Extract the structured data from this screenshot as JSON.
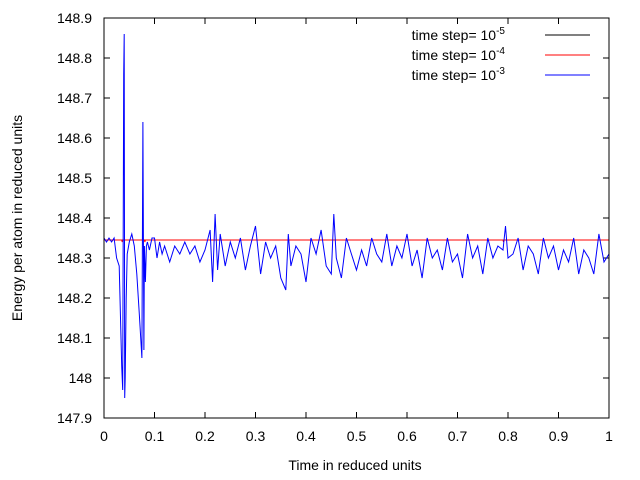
{
  "chart_data": {
    "type": "line",
    "title": "",
    "xlabel": "Time in reduced units",
    "ylabel": "Energy per atom in reduced units",
    "xlim": [
      0,
      1
    ],
    "ylim": [
      147.9,
      148.9
    ],
    "xticks": [
      "0",
      "0.1",
      "0.2",
      "0.3",
      "0.4",
      "0.5",
      "0.6",
      "0.7",
      "0.8",
      "0.9",
      "1"
    ],
    "yticks": [
      "147.9",
      "148",
      "148.1",
      "148.2",
      "148.3",
      "148.4",
      "148.5",
      "148.6",
      "148.7",
      "148.8",
      "148.9"
    ],
    "grid": false,
    "legend_position": "top-right",
    "series": [
      {
        "name_prefix": "time step= 10",
        "name_exponent": "-5",
        "color": "#000000",
        "x": [
          0,
          1
        ],
        "values": [
          148.345,
          148.345
        ]
      },
      {
        "name_prefix": "time step=  10",
        "name_exponent": "-4",
        "color": "#ff0000",
        "x": [
          0,
          0.035,
          0.036,
          0.037,
          0.08,
          0.081,
          0.082,
          0.79,
          0.791,
          0.792,
          1
        ],
        "values": [
          148.345,
          148.345,
          148.34,
          148.345,
          148.345,
          148.34,
          148.345,
          148.345,
          148.34,
          148.345,
          148.345
        ]
      },
      {
        "name_prefix": "time step=  10",
        "name_exponent": "-3",
        "color": "#0000ff",
        "x": [
          0,
          0.005,
          0.01,
          0.015,
          0.02,
          0.025,
          0.03,
          0.035,
          0.037,
          0.039,
          0.04,
          0.041,
          0.042,
          0.044,
          0.046,
          0.05,
          0.055,
          0.06,
          0.065,
          0.07,
          0.075,
          0.077,
          0.079,
          0.08,
          0.082,
          0.084,
          0.086,
          0.09,
          0.095,
          0.1,
          0.105,
          0.11,
          0.115,
          0.12,
          0.13,
          0.14,
          0.15,
          0.16,
          0.17,
          0.18,
          0.19,
          0.2,
          0.21,
          0.215,
          0.22,
          0.225,
          0.23,
          0.24,
          0.25,
          0.26,
          0.27,
          0.28,
          0.29,
          0.3,
          0.31,
          0.32,
          0.33,
          0.34,
          0.35,
          0.36,
          0.365,
          0.37,
          0.38,
          0.39,
          0.4,
          0.41,
          0.42,
          0.43,
          0.44,
          0.45,
          0.455,
          0.46,
          0.47,
          0.48,
          0.49,
          0.5,
          0.51,
          0.52,
          0.53,
          0.54,
          0.55,
          0.56,
          0.57,
          0.58,
          0.59,
          0.6,
          0.61,
          0.62,
          0.63,
          0.64,
          0.65,
          0.66,
          0.67,
          0.68,
          0.69,
          0.7,
          0.71,
          0.72,
          0.73,
          0.74,
          0.75,
          0.76,
          0.77,
          0.78,
          0.79,
          0.795,
          0.8,
          0.81,
          0.82,
          0.83,
          0.84,
          0.85,
          0.86,
          0.87,
          0.88,
          0.89,
          0.9,
          0.91,
          0.92,
          0.93,
          0.94,
          0.95,
          0.96,
          0.97,
          0.98,
          0.99,
          1
        ],
        "values": [
          148.35,
          148.34,
          148.35,
          148.34,
          148.35,
          148.3,
          148.28,
          148.03,
          147.97,
          148.76,
          148.86,
          147.95,
          148.0,
          148.2,
          148.31,
          148.34,
          148.36,
          148.33,
          148.26,
          148.16,
          148.05,
          148.64,
          148.07,
          148.33,
          148.24,
          148.33,
          148.34,
          148.32,
          148.35,
          148.35,
          148.3,
          148.34,
          148.31,
          148.33,
          148.29,
          148.33,
          148.31,
          148.34,
          148.31,
          148.33,
          148.29,
          148.32,
          148.37,
          148.24,
          148.41,
          148.27,
          148.36,
          148.28,
          148.34,
          148.3,
          148.35,
          148.27,
          148.33,
          148.38,
          148.26,
          148.34,
          148.3,
          148.33,
          148.25,
          148.22,
          148.36,
          148.28,
          148.33,
          148.31,
          148.24,
          148.35,
          148.31,
          148.37,
          148.28,
          148.26,
          148.41,
          148.3,
          148.25,
          148.35,
          148.31,
          148.27,
          148.32,
          148.28,
          148.35,
          148.31,
          148.29,
          148.36,
          148.28,
          148.33,
          148.3,
          148.36,
          148.28,
          148.32,
          148.25,
          148.35,
          148.3,
          148.32,
          148.27,
          148.35,
          148.29,
          148.31,
          148.25,
          148.36,
          148.3,
          148.33,
          148.26,
          148.35,
          148.3,
          148.33,
          148.32,
          148.38,
          148.3,
          148.31,
          148.35,
          148.27,
          148.33,
          148.31,
          148.26,
          148.35,
          148.3,
          148.33,
          148.27,
          148.32,
          148.29,
          148.35,
          148.26,
          148.32,
          148.3,
          148.26,
          148.36,
          148.29,
          148.31
        ]
      }
    ]
  }
}
